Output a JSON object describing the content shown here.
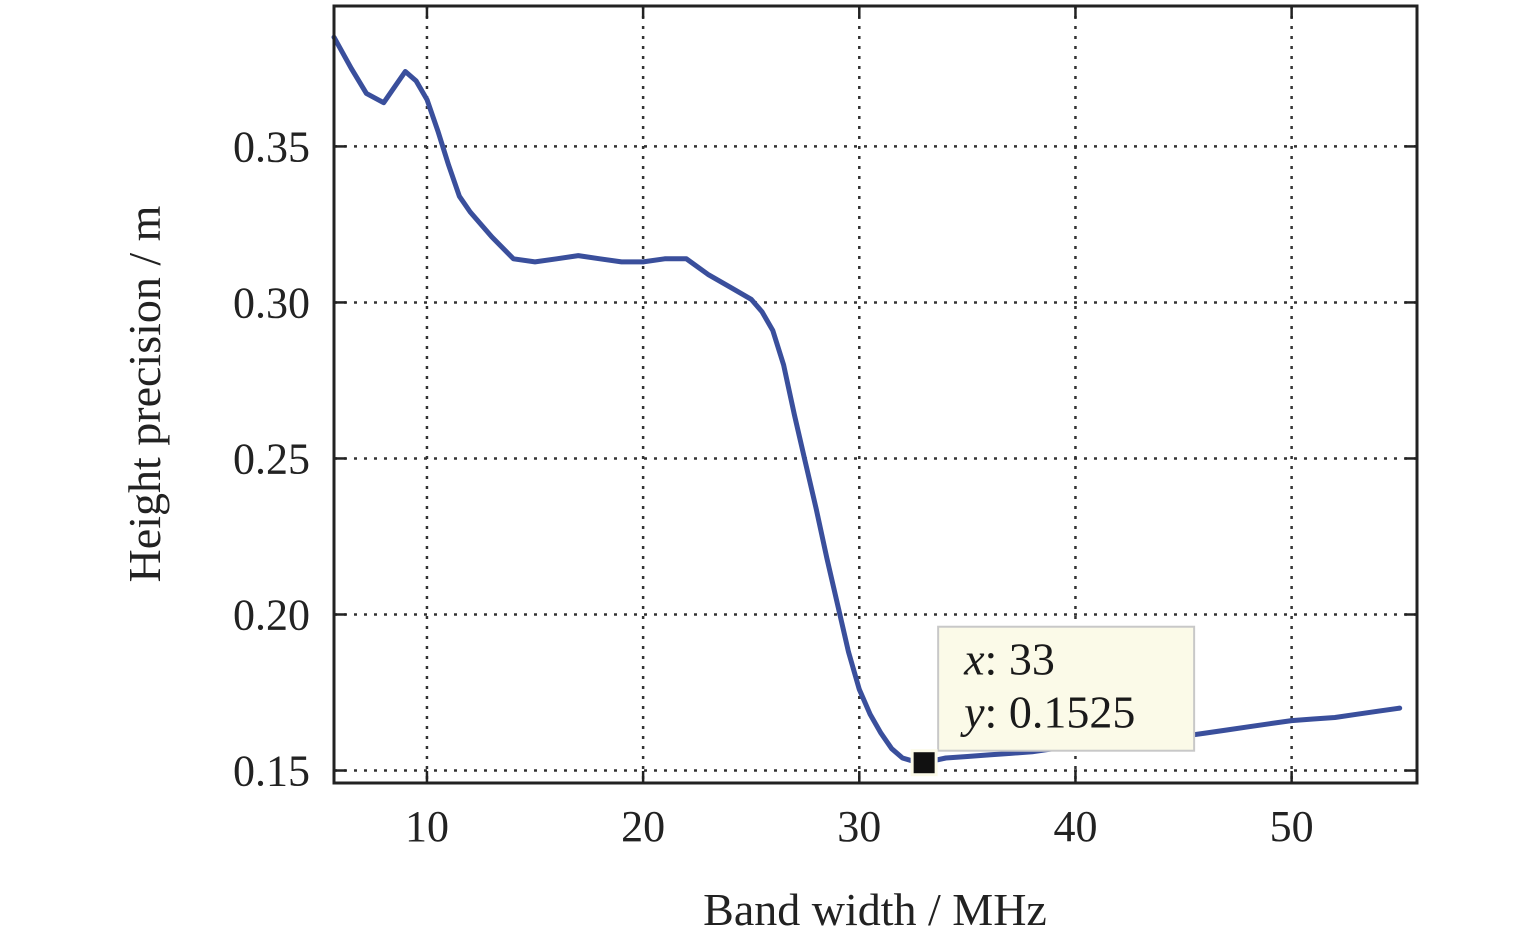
{
  "chart_data": {
    "type": "line",
    "title": "",
    "xlabel": "Band width / MHz",
    "ylabel": "Height precision / m",
    "xlim": [
      5.7,
      55.8
    ],
    "ylim": [
      0.146,
      0.395
    ],
    "xticks": [
      10,
      20,
      30,
      40,
      50
    ],
    "yticks": [
      0.15,
      0.2,
      0.25,
      0.3,
      0.35
    ],
    "ytick_labels": [
      "0.15",
      "0.20",
      "0.25",
      "0.30",
      "0.35"
    ],
    "grid": true,
    "legend": "none",
    "line_color": "#3a4f9c",
    "series": [
      {
        "x": [
          5.7,
          6.5,
          7.2,
          8.0,
          8.5,
          9.0,
          9.5,
          10.0,
          10.5,
          11.0,
          11.5,
          12.0,
          13.0,
          14.0,
          15.0,
          16.0,
          17.0,
          18.0,
          19.0,
          20.0,
          21.0,
          22.0,
          23.0,
          24.0,
          25.0,
          25.5,
          26.0,
          26.5,
          27.0,
          27.5,
          28.0,
          28.5,
          29.0,
          29.5,
          30.0,
          30.5,
          31.0,
          31.5,
          32.0,
          32.5,
          33.0,
          34.0,
          35.0,
          36.0,
          37.0,
          38.0,
          39.0,
          40.0,
          41.0,
          42.0,
          43.0,
          44.0,
          45.0,
          46.0,
          47.0,
          48.0,
          49.0,
          50.0,
          51.0,
          52.0,
          53.0,
          54.0,
          55.0
        ],
        "y": [
          0.385,
          0.375,
          0.367,
          0.364,
          0.369,
          0.374,
          0.371,
          0.365,
          0.355,
          0.344,
          0.334,
          0.329,
          0.321,
          0.314,
          0.313,
          0.314,
          0.315,
          0.314,
          0.313,
          0.313,
          0.314,
          0.314,
          0.309,
          0.305,
          0.301,
          0.297,
          0.291,
          0.28,
          0.264,
          0.249,
          0.234,
          0.218,
          0.203,
          0.188,
          0.176,
          0.168,
          0.162,
          0.157,
          0.154,
          0.153,
          0.1525,
          0.154,
          0.1545,
          0.155,
          0.1555,
          0.156,
          0.157,
          0.158,
          0.159,
          0.159,
          0.16,
          0.161,
          0.161,
          0.162,
          0.163,
          0.164,
          0.165,
          0.166,
          0.1665,
          0.167,
          0.168,
          0.169,
          0.17
        ]
      }
    ],
    "marker": {
      "x": 33,
      "y": 0.1525,
      "x_label": "x",
      "x_text": ": 33",
      "y_label": "y",
      "y_text": ": 0.1525"
    }
  }
}
